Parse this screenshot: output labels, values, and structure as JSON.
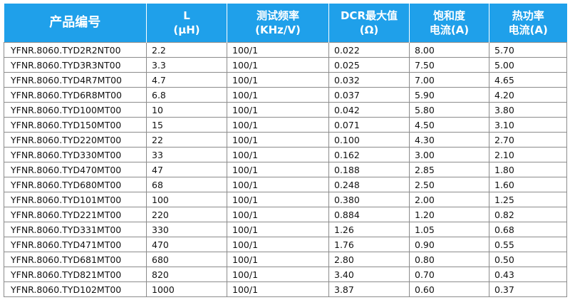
{
  "table": {
    "headers": [
      {
        "line1": "产品编号",
        "line2": ""
      },
      {
        "line1": "L",
        "line2": "(μH)"
      },
      {
        "line1": "测试频率",
        "line2": "(KHz/V)"
      },
      {
        "line1": "DCR最大值",
        "line2": "(Ω)"
      },
      {
        "line1": "饱和度",
        "line2": "电流(A)"
      },
      {
        "line1": "热功率",
        "line2": "电流(A)"
      }
    ],
    "rows": [
      [
        "YFNR.8060.TYD2R2NT00",
        "2.2",
        "100/1",
        "0.022",
        "8.00",
        "5.70"
      ],
      [
        "YFNR.8060.TYD3R3NT00",
        "3.3",
        "100/1",
        "0.025",
        "7.50",
        "5.00"
      ],
      [
        "YFNR.8060.TYD4R7MT00",
        "4.7",
        "100/1",
        "0.032",
        "7.00",
        "4.65"
      ],
      [
        "YFNR.8060.TYD6R8MT00",
        "6.8",
        "100/1",
        "0.037",
        "5.90",
        "4.20"
      ],
      [
        "YFNR.8060.TYD100MT00",
        "10",
        "100/1",
        "0.042",
        "5.80",
        "3.80"
      ],
      [
        "YFNR.8060.TYD150MT00",
        "15",
        "100/1",
        "0.071",
        "4.50",
        "3.10"
      ],
      [
        "YFNR.8060.TYD220MT00",
        "22",
        "100/1",
        "0.100",
        "4.30",
        "2.70"
      ],
      [
        "YFNR.8060.TYD330MT00",
        "33",
        "100/1",
        "0.162",
        "3.00",
        "2.10"
      ],
      [
        "YFNR.8060.TYD470MT00",
        "47",
        "100/1",
        "0.188",
        "2.85",
        "1.80"
      ],
      [
        "YFNR.8060.TYD680MT00",
        "68",
        "100/1",
        "0.248",
        "2.50",
        "1.60"
      ],
      [
        "YFNR.8060.TYD101MT00",
        "100",
        "100/1",
        "0.380",
        "2.00",
        "1.25"
      ],
      [
        "YFNR.8060.TYD221MT00",
        "220",
        "100/1",
        "0.884",
        "1.20",
        "0.82"
      ],
      [
        "YFNR.8060.TYD331MT00",
        "330",
        "100/1",
        "1.26",
        "1.05",
        "0.68"
      ],
      [
        "YFNR.8060.TYD471MT00",
        "470",
        "100/1",
        "1.76",
        "0.90",
        "0.55"
      ],
      [
        "YFNR.8060.TYD681MT00",
        "680",
        "100/1",
        "2.80",
        "0.80",
        "0.50"
      ],
      [
        "YFNR.8060.TYD821MT00",
        "820",
        "100/1",
        "3.40",
        "0.70",
        "0.43"
      ],
      [
        "YFNR.8060.TYD102MT00",
        "1000",
        "100/1",
        "3.87",
        "0.60",
        "0.37"
      ]
    ]
  },
  "colors": {
    "header_bg": "#1fa0ea",
    "header_text": "#ffffff",
    "grid_line": "#8c8c8c"
  }
}
